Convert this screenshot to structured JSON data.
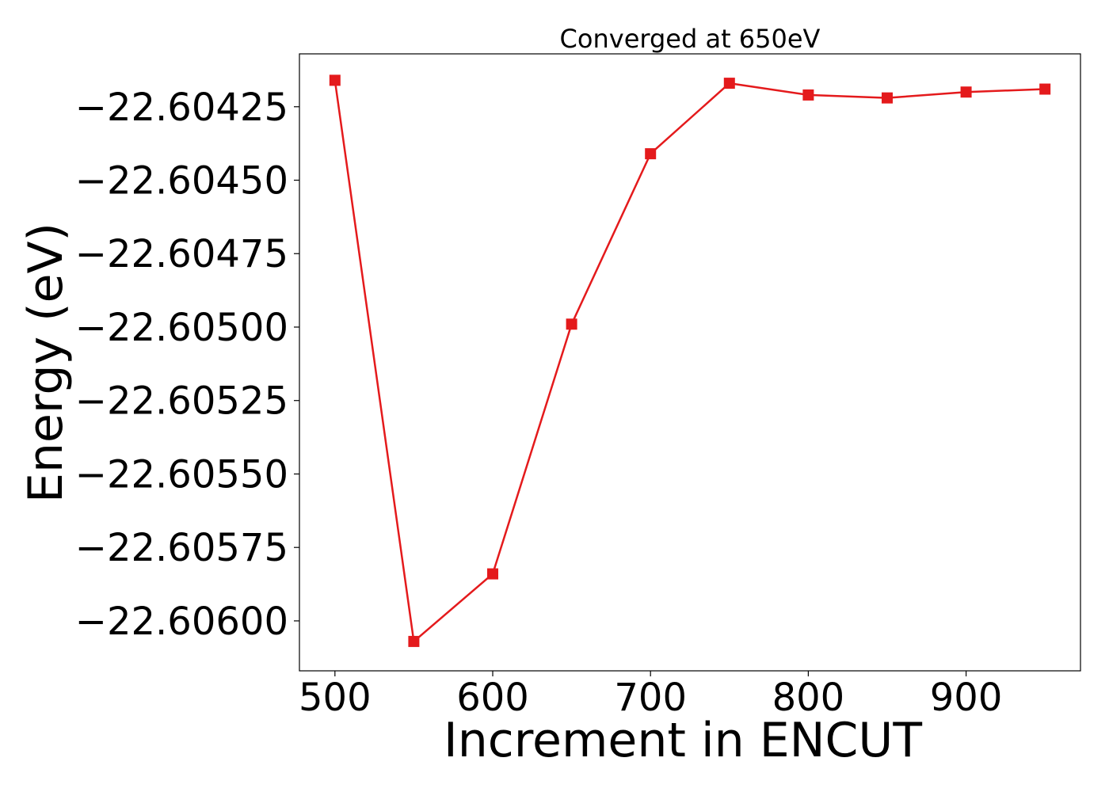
{
  "chart_data": {
    "type": "line",
    "title": "Converged at 650eV",
    "xlabel": "Increment in ENCUT",
    "ylabel": "Energy (eV)",
    "x": [
      500,
      550,
      600,
      650,
      700,
      750,
      800,
      850,
      900,
      950
    ],
    "series": [
      {
        "values": [
          -22.60416,
          -22.60607,
          -22.60584,
          -22.60499,
          -22.60441,
          -22.60417,
          -22.60421,
          -22.60422,
          -22.6042,
          -22.60419
        ],
        "color": "#e41a1c",
        "marker": "square"
      }
    ],
    "xlim": [
      477.5,
      972.5
    ],
    "ylim": [
      -22.60617,
      -22.60407
    ],
    "xticks": [
      500,
      600,
      700,
      800,
      900
    ],
    "xtick_labels": [
      "500",
      "600",
      "700",
      "800",
      "900"
    ],
    "yticks": [
      -22.60425,
      -22.6045,
      -22.60475,
      -22.605,
      -22.60525,
      -22.6055,
      -22.60575,
      -22.606
    ],
    "ytick_labels": [
      "−22.60425",
      "−22.60450",
      "−22.60475",
      "−22.60500",
      "−22.60525",
      "−22.60550",
      "−22.60575",
      "−22.60600"
    ],
    "grid": false,
    "legend": "none"
  }
}
